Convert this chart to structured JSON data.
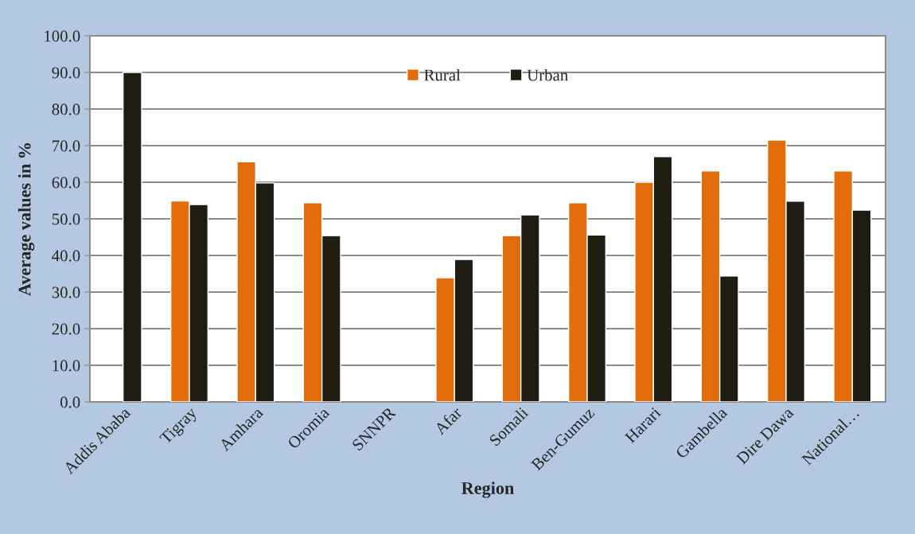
{
  "chart_data": {
    "type": "bar",
    "xlabel": "Region",
    "ylabel": "Average values in %",
    "categories": [
      "Addis Ababa",
      "Tigray",
      "Amhara",
      "Oromia",
      "SNNPR",
      "Afar",
      "Somali",
      "Ben-Gumuz",
      "Harari",
      "Gambella",
      "Dire Dawa",
      "National…"
    ],
    "series": [
      {
        "name": "Rural",
        "color": "#e36c0a",
        "values": [
          null,
          54.9,
          65.6,
          54.4,
          null,
          33.9,
          45.4,
          54.4,
          60.0,
          63.1,
          71.5,
          63.1
        ]
      },
      {
        "name": "Urban",
        "color": "#1f1c12",
        "values": [
          90.0,
          53.9,
          59.8,
          45.4,
          null,
          38.9,
          51.1,
          45.6,
          67.0,
          34.4,
          54.8,
          52.4
        ]
      }
    ],
    "ylim": [
      0,
      100
    ],
    "yticks": [
      {
        "value": 0,
        "label": "0.0"
      },
      {
        "value": 10,
        "label": "10.0"
      },
      {
        "value": 20,
        "label": "20.0"
      },
      {
        "value": 30,
        "label": "30.0"
      },
      {
        "value": 40,
        "label": "40.0"
      },
      {
        "value": 50,
        "label": "50.0"
      },
      {
        "value": 60,
        "label": "60.0"
      },
      {
        "value": 70,
        "label": "70.0"
      },
      {
        "value": 80,
        "label": "80.0"
      },
      {
        "value": 90,
        "label": "90.0"
      },
      {
        "value": 100,
        "label": "100.0"
      }
    ],
    "grid": "y",
    "legend": "top"
  }
}
